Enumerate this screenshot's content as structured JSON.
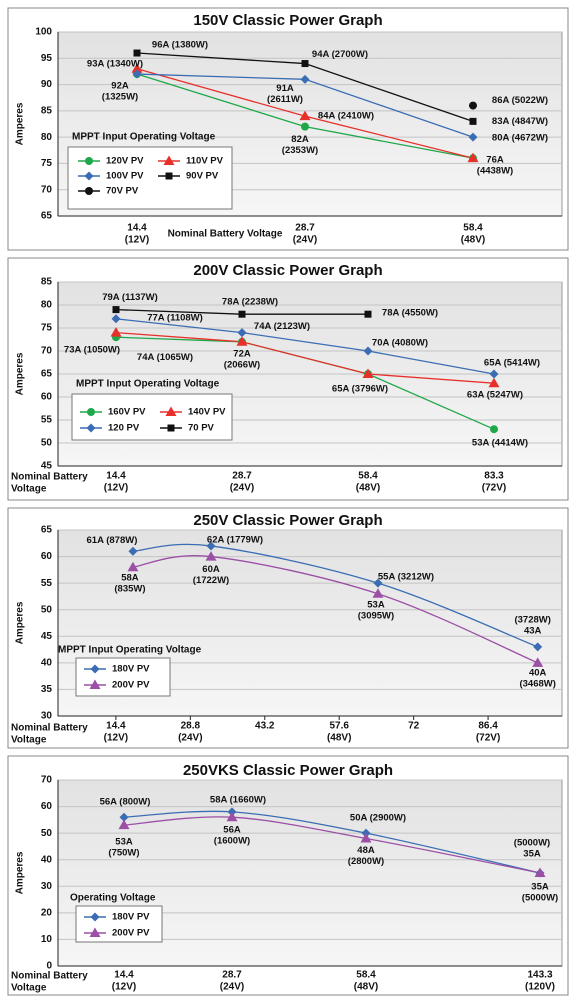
{
  "chart_data": [
    {
      "type": "line",
      "title": "150V Classic Power Graph",
      "ylabel": "Amperes",
      "xlabel": [
        "Nominal Battery Voltage"
      ],
      "categories": [
        "14.4",
        "28.7",
        "58.4"
      ],
      "category_notes": [
        "(12V)",
        "(24V)",
        "(48V)"
      ],
      "ylim": [
        65,
        100
      ],
      "yticks": [
        65,
        70,
        75,
        80,
        85,
        90,
        95,
        100
      ],
      "grid": true,
      "smooth": false,
      "legend_title": "MPPT Input Operating Voltage",
      "series": [
        {
          "name": "120V PV",
          "color": "#1fa84a",
          "marker": "circle",
          "values": [
            92,
            82,
            76
          ],
          "value_labels": [
            [
              "92A",
              "(1325W)"
            ],
            [
              "82A",
              "(2353W)"
            ],
            null
          ]
        },
        {
          "name": "110V PV",
          "color": "#e8302a",
          "marker": "triangle",
          "values": [
            93,
            84,
            76
          ],
          "value_labels": [
            [
              "93A (1340W)"
            ],
            [
              "84A (2410W)"
            ],
            [
              "76A",
              "(4438W)"
            ]
          ]
        },
        {
          "name": "100V PV",
          "color": "#3b6db4",
          "marker": "diamond",
          "values": [
            92,
            91,
            80
          ],
          "value_labels": [
            null,
            [
              "91A",
              "(2611W)"
            ],
            [
              "80A (4672W)"
            ]
          ]
        },
        {
          "name": "90V PV",
          "color": "#111111",
          "marker": "square",
          "values": [
            96,
            94,
            83
          ],
          "value_labels": [
            [
              "96A (1380W)"
            ],
            [
              "94A (2700W)"
            ],
            [
              "83A (4847W)"
            ]
          ]
        },
        {
          "name": "70V PV",
          "color": "#111111",
          "marker": "circle",
          "values": [
            null,
            null,
            86
          ],
          "value_labels": [
            null,
            null,
            [
              "86A (5022W)"
            ]
          ]
        }
      ]
    },
    {
      "type": "line",
      "title": "200V Classic Power Graph",
      "ylabel": "Amperes",
      "xlabel": [
        "Nominal Battery",
        "Voltage"
      ],
      "categories": [
        "14.4",
        "28.7",
        "58.4",
        "83.3"
      ],
      "category_notes": [
        "(12V)",
        "(24V)",
        "(48V)",
        "(72V)"
      ],
      "ylim": [
        45,
        85
      ],
      "yticks": [
        45,
        50,
        55,
        60,
        65,
        70,
        75,
        80,
        85
      ],
      "grid": true,
      "smooth": false,
      "legend_title": "MPPT Input Operating Voltage",
      "series": [
        {
          "name": "160V PV",
          "color": "#1fa84a",
          "marker": "circle",
          "values": [
            73,
            72,
            65,
            53
          ],
          "value_labels": [
            [
              "73A (1050W)"
            ],
            null,
            null,
            [
              "53A (4414W)"
            ]
          ]
        },
        {
          "name": "140V PV",
          "color": "#e8302a",
          "marker": "triangle",
          "values": [
            74,
            72,
            65,
            63
          ],
          "value_labels": [
            [
              "74A (1065W)"
            ],
            [
              "72A",
              "(2066W)"
            ],
            [
              "65A (3796W)"
            ],
            [
              "63A (5247W)"
            ]
          ]
        },
        {
          "name": "120 PV",
          "color": "#3b6db4",
          "marker": "diamond",
          "values": [
            77,
            74,
            70,
            65
          ],
          "value_labels": [
            [
              "77A (1108W)"
            ],
            [
              "74A (2123W)"
            ],
            [
              "70A (4080W)"
            ],
            [
              "65A (5414W)"
            ]
          ]
        },
        {
          "name": "70 PV",
          "color": "#111111",
          "marker": "square",
          "values": [
            79,
            78,
            78,
            null
          ],
          "value_labels": [
            [
              "79A (1137W)"
            ],
            [
              "78A (2238W)"
            ],
            [
              "78A (4550W)"
            ],
            null
          ]
        }
      ]
    },
    {
      "type": "line",
      "title": "250V Classic Power Graph",
      "ylabel": "Amperes",
      "xlabel": [
        "Nominal Battery",
        "Voltage"
      ],
      "x": [
        17.7,
        32.8,
        65.1,
        96
      ],
      "xlim": [
        3.2,
        100.7
      ],
      "xticks": [
        14.4,
        28.8,
        43.2,
        57.6,
        72,
        86.4
      ],
      "xtick_notes": [
        "(12V)",
        "(24V)",
        null,
        "(48V)",
        null,
        "(72V)"
      ],
      "ylim": [
        30,
        65
      ],
      "yticks": [
        30,
        35,
        40,
        45,
        50,
        55,
        60,
        65
      ],
      "grid": true,
      "smooth": true,
      "legend_title": "MPPT Input Operating Voltage",
      "series": [
        {
          "name": "180V PV",
          "color": "#3b6db4",
          "marker": "diamond",
          "values": [
            61,
            62,
            55,
            43
          ],
          "value_labels": [
            [
              "61A (878W)"
            ],
            [
              "62A (1779W)"
            ],
            [
              "55A (3212W)"
            ],
            [
              "(3728W)",
              "43A"
            ]
          ]
        },
        {
          "name": "200V PV",
          "color": "#9b4fa5",
          "marker": "triangle",
          "values": [
            58,
            60,
            53,
            40
          ],
          "value_labels": [
            [
              "58A",
              "(835W)"
            ],
            [
              "60A",
              "(1722W)"
            ],
            [
              "53A",
              "(3095W)"
            ],
            [
              "40A",
              "(3468W)"
            ]
          ]
        }
      ]
    },
    {
      "type": "line",
      "title": "250VKS Classic Power Graph",
      "ylabel": "Amperes",
      "xlabel": [
        "Nominal Battery",
        "Voltage"
      ],
      "categories": [
        "14.4",
        "28.7",
        "58.4",
        "143.3"
      ],
      "category_notes": [
        "(12V)",
        "(24V)",
        "(48V)",
        "(120V)"
      ],
      "ylim": [
        0,
        70
      ],
      "yticks": [
        0,
        10,
        20,
        30,
        40,
        50,
        60,
        70
      ],
      "grid": true,
      "smooth": true,
      "legend_title": "Operating Voltage",
      "series": [
        {
          "name": "180V PV",
          "color": "#3b6db4",
          "marker": "diamond",
          "values": [
            56,
            58,
            50,
            35
          ],
          "value_labels": [
            [
              "56A (800W)"
            ],
            [
              "58A (1660W)"
            ],
            [
              "50A (2900W)"
            ],
            [
              "(5000W)",
              "35A"
            ]
          ]
        },
        {
          "name": "200V PV",
          "color": "#9b4fa5",
          "marker": "triangle",
          "values": [
            53,
            56,
            48,
            35
          ],
          "value_labels": [
            [
              "53A",
              "(750W)"
            ],
            [
              "56A",
              "(1600W)"
            ],
            [
              "48A",
              "(2800W)"
            ],
            [
              "35A",
              "(5000W)"
            ]
          ]
        }
      ]
    }
  ]
}
